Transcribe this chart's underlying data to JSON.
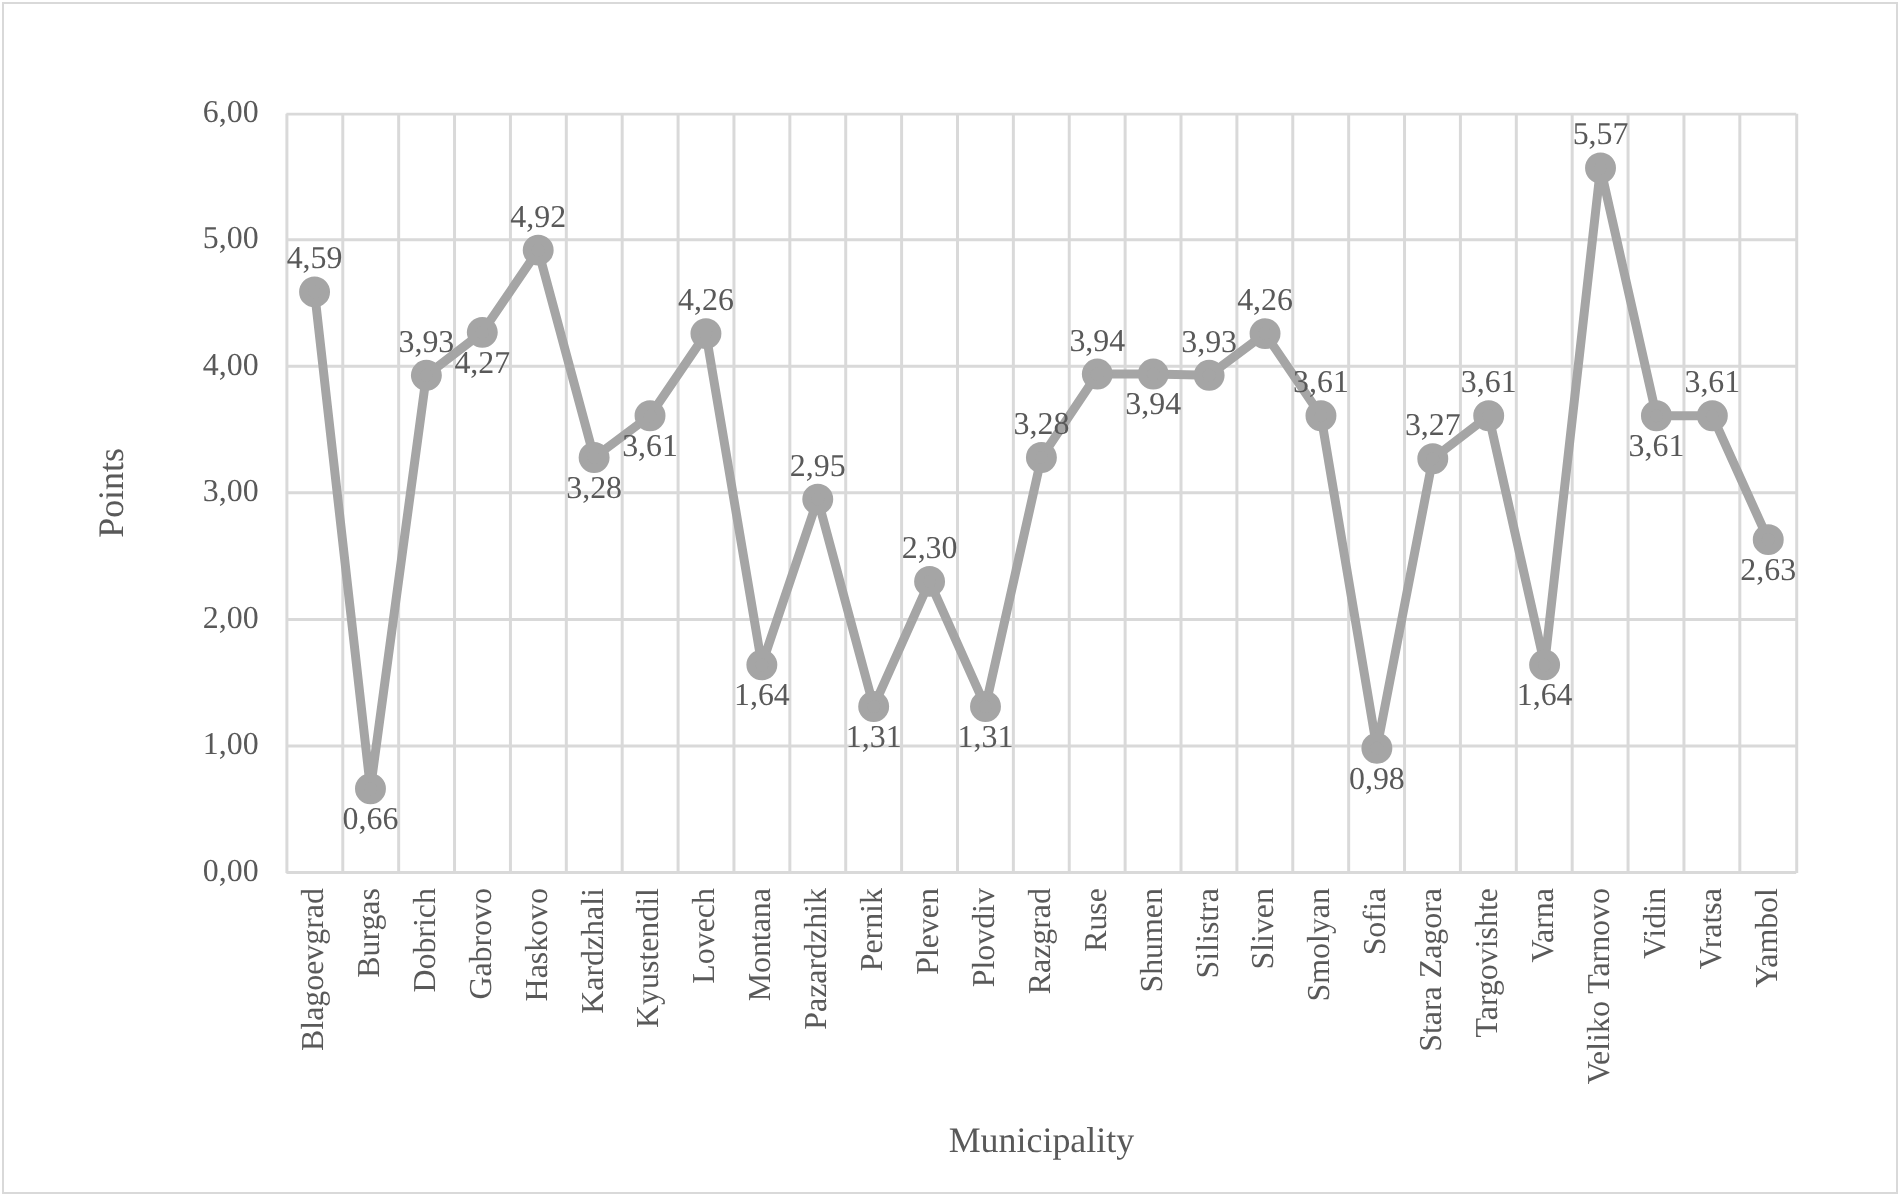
{
  "chart_data": {
    "type": "line",
    "xlabel": "Municipality",
    "ylabel": "Points",
    "categories": [
      "Blagoevgrad",
      "Burgas",
      "Dobrich",
      "Gabrovo",
      "Haskovo",
      "Kardzhali",
      "Kyustendil",
      "Lovech",
      "Montana",
      "Pazardzhik",
      "Pernik",
      "Pleven",
      "Plovdiv",
      "Razgrad",
      "Ruse",
      "Shumen",
      "Silistra",
      "Sliven",
      "Smolyan",
      "Sofia",
      "Stara Zagora",
      "Targovishte",
      "Varna",
      "Veliko Tarnovo",
      "Vidin",
      "Vratsa",
      "Yambol"
    ],
    "series": [
      {
        "color": "#a5a5a5",
        "values": [
          4.59,
          0.66,
          3.93,
          4.27,
          4.92,
          3.28,
          3.61,
          4.26,
          1.64,
          2.95,
          1.31,
          2.3,
          1.31,
          3.28,
          3.94,
          3.94,
          3.93,
          4.26,
          3.61,
          0.98,
          3.27,
          3.61,
          1.64,
          5.57,
          3.61,
          3.61,
          2.63
        ],
        "value_labels": [
          "4,59",
          "0,66",
          "3,93",
          "4,27",
          "4,92",
          "3,28",
          "3,61",
          "4,26",
          "1,64",
          "2,95",
          "1,31",
          "2,30",
          "1,31",
          "3,28",
          "3,94",
          "3,94",
          "3,93",
          "4,26",
          "3,61",
          "0,98",
          "3,27",
          "3,61",
          "1,64",
          "5,57",
          "3,61",
          "3,61",
          "2,63"
        ]
      }
    ],
    "ylim": [
      0,
      6
    ],
    "yticks": [
      {
        "value": 0,
        "label": "0,00"
      },
      {
        "value": 1,
        "label": "1,00"
      },
      {
        "value": 2,
        "label": "2,00"
      },
      {
        "value": 3,
        "label": "3,00"
      },
      {
        "value": 4,
        "label": "4,00"
      },
      {
        "value": 5,
        "label": "5,00"
      },
      {
        "value": 6,
        "label": "6,00"
      }
    ],
    "grid": true,
    "legend": false,
    "marker": "circle",
    "line_style": "solid"
  }
}
